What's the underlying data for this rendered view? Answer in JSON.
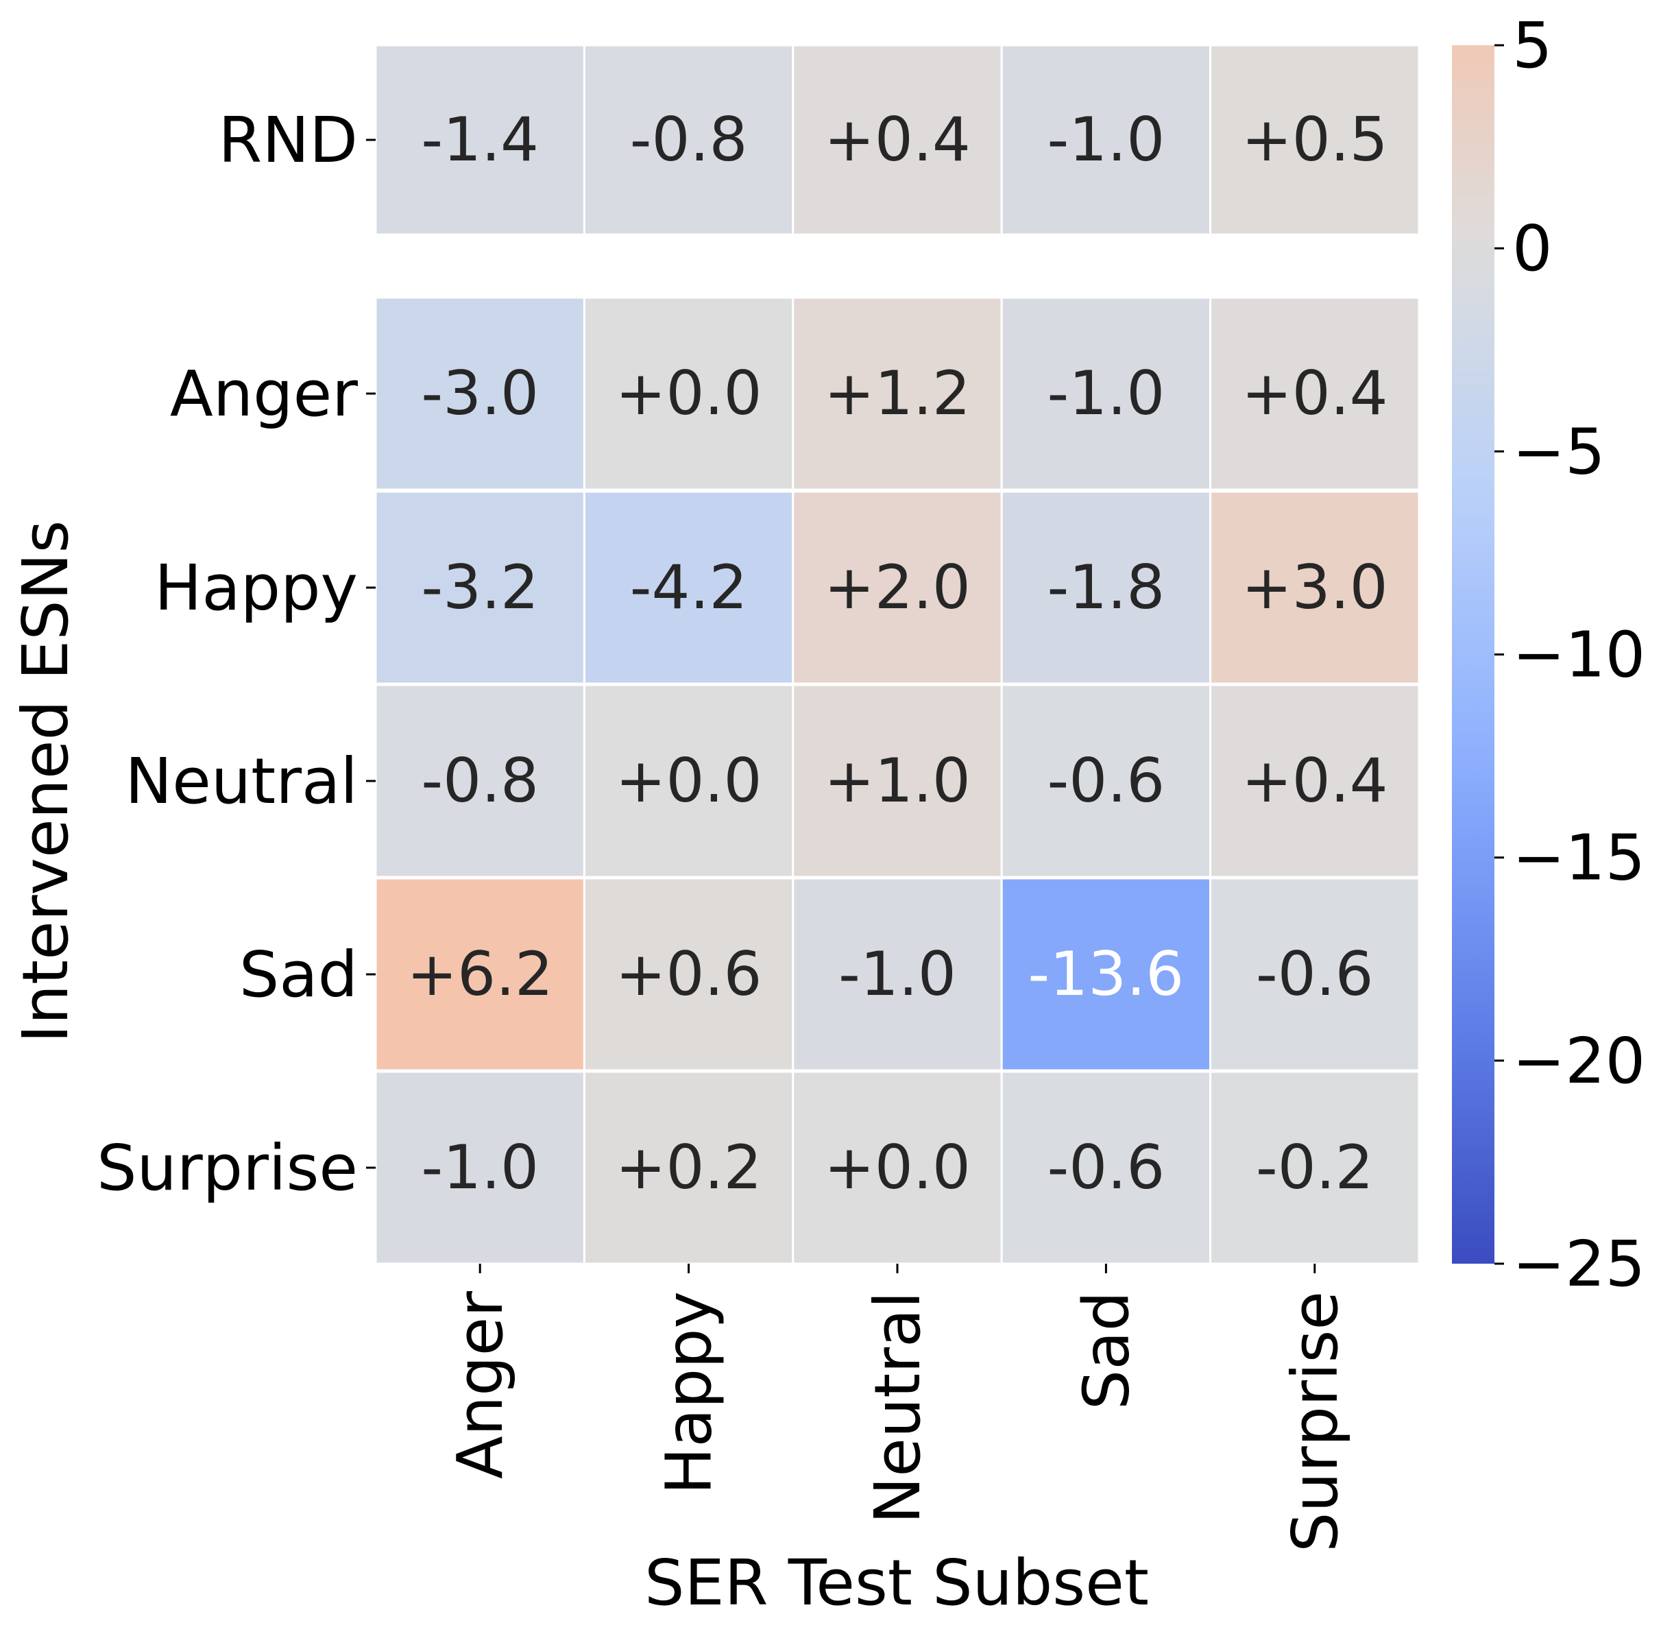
{
  "chart_data": {
    "type": "heatmap",
    "title": "",
    "xlabel": "SER Test Subset",
    "ylabel": "Intervened ESNs",
    "columns": [
      "Anger",
      "Happy",
      "Neutral",
      "Sad",
      "Surprise"
    ],
    "rows": [
      "RND",
      "Anger",
      "Happy",
      "Neutral",
      "Sad",
      "Surprise"
    ],
    "values": [
      [
        -1.4,
        -0.8,
        0.4,
        -1.0,
        0.5
      ],
      [
        -3.0,
        0.0,
        1.2,
        -1.0,
        0.4
      ],
      [
        -3.2,
        -4.2,
        2.0,
        -1.8,
        3.0
      ],
      [
        -0.8,
        0.0,
        1.0,
        -0.6,
        0.4
      ],
      [
        6.2,
        0.6,
        -1.0,
        -13.6,
        -0.6
      ],
      [
        -1.0,
        0.2,
        0.0,
        -0.6,
        -0.2
      ]
    ],
    "cell_labels": [
      [
        "-1.4",
        "-0.8",
        "+0.4",
        "-1.0",
        "+0.5"
      ],
      [
        "-3.0",
        "+0.0",
        "+1.2",
        "-1.0",
        "+0.4"
      ],
      [
        "-3.2",
        "-4.2",
        "+2.0",
        "-1.8",
        "+3.0"
      ],
      [
        "-0.8",
        "+0.0",
        "+1.0",
        "-0.6",
        "+0.4"
      ],
      [
        "+6.2",
        "+0.6",
        "-1.0",
        "-13.6",
        "-0.6"
      ],
      [
        "-1.0",
        "+0.2",
        "+0.0",
        "-0.6",
        "-0.2"
      ]
    ],
    "colorbar": {
      "colormap": "coolwarm",
      "range": [
        -25,
        5
      ],
      "ticks": [
        5,
        0,
        -5,
        -10,
        -15,
        -20,
        -25
      ],
      "tick_labels": [
        "5",
        "0",
        "−5",
        "−10",
        "−15",
        "−20",
        "−25"
      ]
    },
    "colors": {
      "cold": "#3b4cc0",
      "neutral": "#dddddd",
      "warm": "#b40426"
    }
  }
}
